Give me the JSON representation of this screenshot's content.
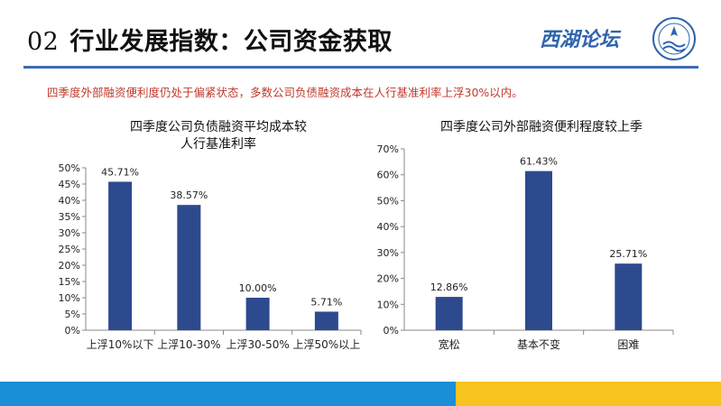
{
  "header": {
    "number": "02",
    "title": "行业发展指数：公司资金获取",
    "logo_text": "西湖论坛"
  },
  "subtitle": "四季度外部融资便利度仍处于偏紧状态，多数公司负债融资成本在人行基准利率上浮30%以内。",
  "colors": {
    "bar": "#2d4a8f",
    "accent": "#3d6bb3",
    "subtitle": "#c0392b",
    "band_blue": "#1a8ed8",
    "band_yellow": "#f7c31f"
  },
  "chart_data": [
    {
      "type": "bar",
      "title": "四季度公司负债融资平均成本较人行基准利率",
      "title_lines": [
        "四季度公司负债融资平均成本较",
        "人行基准利率"
      ],
      "categories": [
        "上浮10%以下",
        "上浮10-30%",
        "上浮30-50%",
        "上浮50%以上"
      ],
      "values": [
        45.71,
        38.57,
        10.0,
        5.71
      ],
      "data_labels": [
        "45.71%",
        "38.57%",
        "10.00%",
        "5.71%"
      ],
      "yticks": [
        "0%",
        "5%",
        "10%",
        "15%",
        "20%",
        "25%",
        "30%",
        "35%",
        "40%",
        "45%",
        "50%"
      ],
      "ylim": [
        0,
        50
      ],
      "grid": false
    },
    {
      "type": "bar",
      "title": "四季度公司外部融资便利程度较上季",
      "title_lines": [
        "四季度公司外部融资便利程度较上季"
      ],
      "categories": [
        "宽松",
        "基本不变",
        "困难"
      ],
      "values": [
        12.86,
        61.43,
        25.71
      ],
      "data_labels": [
        "12.86%",
        "61.43%",
        "25.71%"
      ],
      "yticks": [
        "0%",
        "10%",
        "20%",
        "30%",
        "40%",
        "50%",
        "60%",
        "70%"
      ],
      "ylim": [
        0,
        70
      ],
      "grid": false
    }
  ]
}
